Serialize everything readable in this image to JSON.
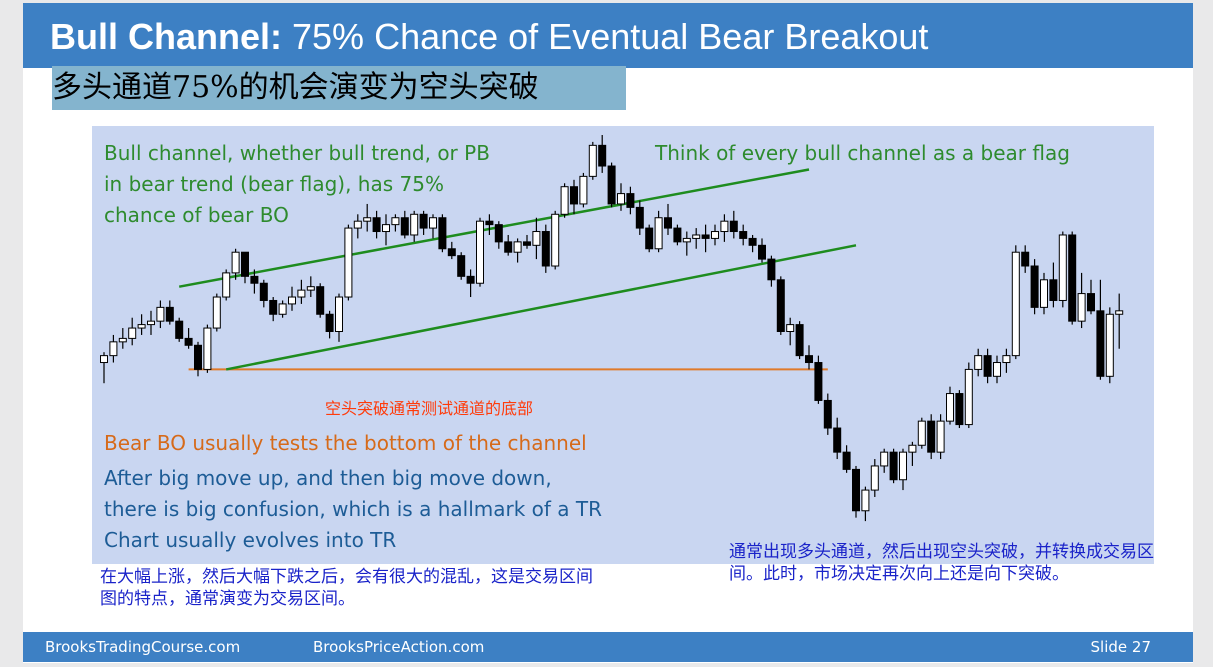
{
  "slide": {
    "title_bold": "Bull Channel:",
    "title_rest": "75% Chance of Eventual Bear Breakout",
    "subtitle_cn": "多头通道75%的机会演变为空头突破",
    "footer": {
      "left": "BrooksTradingCourse.com",
      "middle": "BrooksPriceAction.com",
      "right": "Slide  27"
    }
  },
  "annotations": {
    "bull_channel_note": [
      "Bull channel, whether bull trend, or PB",
      "in bear trend (bear flag), has 75%",
      "chance of bear BO"
    ],
    "bear_flag_note": "Think of every bull channel as a bear flag",
    "cn_test_note": "空头突破通常测试通道的底部",
    "bear_bo_note": "Bear BO usually tests the bottom of the channel",
    "confusion_note": [
      "After big move up, and then big move down,",
      "there is big confusion, which is a hallmark of a TR",
      "Chart usually evolves into TR"
    ],
    "cn_confusion_note": "在大幅上涨，然后大幅下跌之后，会有很大的混乱，这是交易区间图的特点，通常演变为交易区间。",
    "cn_right_note": "通常出现多头通道，然后出现空头突破，并转换成交易区间。此时，市场决定再次向上还是向下突破。"
  },
  "colors": {
    "title_bar": "#3d80c4",
    "chart_bg": "#c9d6f1",
    "channel_line": "#1e8c1e",
    "support_line": "#e07a2a",
    "candle": "#000000"
  },
  "chart_data": {
    "type": "candlestick",
    "title": "",
    "xlabel": "",
    "ylabel": "",
    "axes_shown": false,
    "ylim": [
      0,
      100
    ],
    "candles": [
      {
        "o": 40,
        "h": 43,
        "l": 34,
        "c": 42
      },
      {
        "o": 42,
        "h": 48,
        "l": 40,
        "c": 46
      },
      {
        "o": 46,
        "h": 50,
        "l": 44,
        "c": 47
      },
      {
        "o": 47,
        "h": 53,
        "l": 45,
        "c": 50
      },
      {
        "o": 50,
        "h": 54,
        "l": 48,
        "c": 51
      },
      {
        "o": 51,
        "h": 55,
        "l": 48,
        "c": 52
      },
      {
        "o": 52,
        "h": 58,
        "l": 50,
        "c": 56
      },
      {
        "o": 56,
        "h": 58,
        "l": 51,
        "c": 52
      },
      {
        "o": 52,
        "h": 53,
        "l": 46,
        "c": 47
      },
      {
        "o": 47,
        "h": 50,
        "l": 44,
        "c": 45
      },
      {
        "o": 45,
        "h": 46,
        "l": 36,
        "c": 38
      },
      {
        "o": 38,
        "h": 51,
        "l": 37,
        "c": 50
      },
      {
        "o": 50,
        "h": 60,
        "l": 49,
        "c": 59
      },
      {
        "o": 59,
        "h": 67,
        "l": 58,
        "c": 66
      },
      {
        "o": 66,
        "h": 73,
        "l": 64,
        "c": 72
      },
      {
        "o": 72,
        "h": 72,
        "l": 63,
        "c": 65
      },
      {
        "o": 65,
        "h": 67,
        "l": 60,
        "c": 63
      },
      {
        "o": 63,
        "h": 64,
        "l": 56,
        "c": 58
      },
      {
        "o": 58,
        "h": 59,
        "l": 52,
        "c": 54
      },
      {
        "o": 54,
        "h": 58,
        "l": 53,
        "c": 57
      },
      {
        "o": 57,
        "h": 62,
        "l": 55,
        "c": 59
      },
      {
        "o": 59,
        "h": 64,
        "l": 57,
        "c": 61
      },
      {
        "o": 61,
        "h": 65,
        "l": 59,
        "c": 62
      },
      {
        "o": 62,
        "h": 63,
        "l": 53,
        "c": 54
      },
      {
        "o": 54,
        "h": 55,
        "l": 47,
        "c": 49
      },
      {
        "o": 49,
        "h": 60,
        "l": 46,
        "c": 59
      },
      {
        "o": 59,
        "h": 80,
        "l": 58,
        "c": 79
      },
      {
        "o": 79,
        "h": 83,
        "l": 76,
        "c": 81
      },
      {
        "o": 81,
        "h": 86,
        "l": 78,
        "c": 82
      },
      {
        "o": 82,
        "h": 84,
        "l": 76,
        "c": 78
      },
      {
        "o": 78,
        "h": 83,
        "l": 74,
        "c": 80
      },
      {
        "o": 80,
        "h": 83,
        "l": 78,
        "c": 82
      },
      {
        "o": 82,
        "h": 84,
        "l": 76,
        "c": 77
      },
      {
        "o": 77,
        "h": 84,
        "l": 75,
        "c": 83
      },
      {
        "o": 83,
        "h": 84,
        "l": 77,
        "c": 79
      },
      {
        "o": 79,
        "h": 83,
        "l": 76,
        "c": 82
      },
      {
        "o": 82,
        "h": 83,
        "l": 72,
        "c": 73
      },
      {
        "o": 73,
        "h": 75,
        "l": 70,
        "c": 71
      },
      {
        "o": 71,
        "h": 72,
        "l": 64,
        "c": 65
      },
      {
        "o": 65,
        "h": 67,
        "l": 59,
        "c": 63
      },
      {
        "o": 63,
        "h": 82,
        "l": 62,
        "c": 81
      },
      {
        "o": 81,
        "h": 83,
        "l": 77,
        "c": 80
      },
      {
        "o": 80,
        "h": 81,
        "l": 73,
        "c": 75
      },
      {
        "o": 75,
        "h": 77,
        "l": 71,
        "c": 72
      },
      {
        "o": 72,
        "h": 76,
        "l": 69,
        "c": 75
      },
      {
        "o": 75,
        "h": 77,
        "l": 73,
        "c": 74
      },
      {
        "o": 74,
        "h": 82,
        "l": 70,
        "c": 78
      },
      {
        "o": 78,
        "h": 80,
        "l": 66,
        "c": 68
      },
      {
        "o": 68,
        "h": 84,
        "l": 67,
        "c": 83
      },
      {
        "o": 83,
        "h": 92,
        "l": 82,
        "c": 91
      },
      {
        "o": 91,
        "h": 93,
        "l": 83,
        "c": 86
      },
      {
        "o": 86,
        "h": 95,
        "l": 85,
        "c": 94
      },
      {
        "o": 94,
        "h": 104,
        "l": 93,
        "c": 103
      },
      {
        "o": 103,
        "h": 106,
        "l": 95,
        "c": 97
      },
      {
        "o": 97,
        "h": 98,
        "l": 85,
        "c": 86
      },
      {
        "o": 86,
        "h": 92,
        "l": 84,
        "c": 89
      },
      {
        "o": 89,
        "h": 91,
        "l": 83,
        "c": 85
      },
      {
        "o": 85,
        "h": 87,
        "l": 77,
        "c": 79
      },
      {
        "o": 79,
        "h": 80,
        "l": 72,
        "c": 73
      },
      {
        "o": 73,
        "h": 84,
        "l": 72,
        "c": 82
      },
      {
        "o": 82,
        "h": 86,
        "l": 77,
        "c": 79
      },
      {
        "o": 79,
        "h": 80,
        "l": 74,
        "c": 75
      },
      {
        "o": 75,
        "h": 78,
        "l": 71,
        "c": 76
      },
      {
        "o": 76,
        "h": 79,
        "l": 73,
        "c": 77
      },
      {
        "o": 77,
        "h": 80,
        "l": 72,
        "c": 76
      },
      {
        "o": 76,
        "h": 80,
        "l": 74,
        "c": 78
      },
      {
        "o": 78,
        "h": 83,
        "l": 75,
        "c": 81
      },
      {
        "o": 81,
        "h": 84,
        "l": 76,
        "c": 78
      },
      {
        "o": 78,
        "h": 80,
        "l": 74,
        "c": 76
      },
      {
        "o": 76,
        "h": 77,
        "l": 72,
        "c": 74
      },
      {
        "o": 74,
        "h": 76,
        "l": 69,
        "c": 70
      },
      {
        "o": 70,
        "h": 71,
        "l": 62,
        "c": 64
      },
      {
        "o": 64,
        "h": 65,
        "l": 48,
        "c": 49
      },
      {
        "o": 49,
        "h": 53,
        "l": 45,
        "c": 51
      },
      {
        "o": 51,
        "h": 52,
        "l": 41,
        "c": 42
      },
      {
        "o": 42,
        "h": 45,
        "l": 38,
        "c": 40
      },
      {
        "o": 40,
        "h": 42,
        "l": 28,
        "c": 29
      },
      {
        "o": 29,
        "h": 31,
        "l": 19,
        "c": 21
      },
      {
        "o": 21,
        "h": 24,
        "l": 12,
        "c": 14
      },
      {
        "o": 14,
        "h": 16,
        "l": 8,
        "c": 9
      },
      {
        "o": 9,
        "h": 10,
        "l": -5,
        "c": -3
      },
      {
        "o": -3,
        "h": 4,
        "l": -6,
        "c": 3
      },
      {
        "o": 3,
        "h": 12,
        "l": 1,
        "c": 10
      },
      {
        "o": 10,
        "h": 15,
        "l": 8,
        "c": 14
      },
      {
        "o": 14,
        "h": 15,
        "l": 5,
        "c": 6
      },
      {
        "o": 6,
        "h": 15,
        "l": 3,
        "c": 14
      },
      {
        "o": 14,
        "h": 17,
        "l": 10,
        "c": 16
      },
      {
        "o": 16,
        "h": 24,
        "l": 15,
        "c": 23
      },
      {
        "o": 23,
        "h": 25,
        "l": 12,
        "c": 14
      },
      {
        "o": 14,
        "h": 25,
        "l": 12,
        "c": 23
      },
      {
        "o": 23,
        "h": 33,
        "l": 22,
        "c": 31
      },
      {
        "o": 31,
        "h": 32,
        "l": 21,
        "c": 22
      },
      {
        "o": 22,
        "h": 40,
        "l": 21,
        "c": 38
      },
      {
        "o": 38,
        "h": 44,
        "l": 36,
        "c": 42
      },
      {
        "o": 42,
        "h": 44,
        "l": 34,
        "c": 36
      },
      {
        "o": 36,
        "h": 42,
        "l": 34,
        "c": 40
      },
      {
        "o": 40,
        "h": 44,
        "l": 37,
        "c": 42
      },
      {
        "o": 42,
        "h": 74,
        "l": 41,
        "c": 72
      },
      {
        "o": 72,
        "h": 74,
        "l": 66,
        "c": 68
      },
      {
        "o": 68,
        "h": 70,
        "l": 54,
        "c": 56
      },
      {
        "o": 56,
        "h": 66,
        "l": 54,
        "c": 64
      },
      {
        "o": 64,
        "h": 69,
        "l": 56,
        "c": 58
      },
      {
        "o": 58,
        "h": 78,
        "l": 56,
        "c": 77
      },
      {
        "o": 77,
        "h": 78,
        "l": 51,
        "c": 52
      },
      {
        "o": 52,
        "h": 66,
        "l": 50,
        "c": 60
      },
      {
        "o": 60,
        "h": 64,
        "l": 54,
        "c": 55
      },
      {
        "o": 55,
        "h": 64,
        "l": 35,
        "c": 36
      },
      {
        "o": 36,
        "h": 56,
        "l": 34,
        "c": 54
      },
      {
        "o": 54,
        "h": 60,
        "l": 44,
        "c": 55
      }
    ],
    "channel": {
      "upper": [
        [
          8,
          62
        ],
        [
          75,
          96
        ]
      ],
      "lower": [
        [
          13,
          38
        ],
        [
          80,
          74
        ]
      ]
    },
    "bear_bo_test_level": 38
  }
}
